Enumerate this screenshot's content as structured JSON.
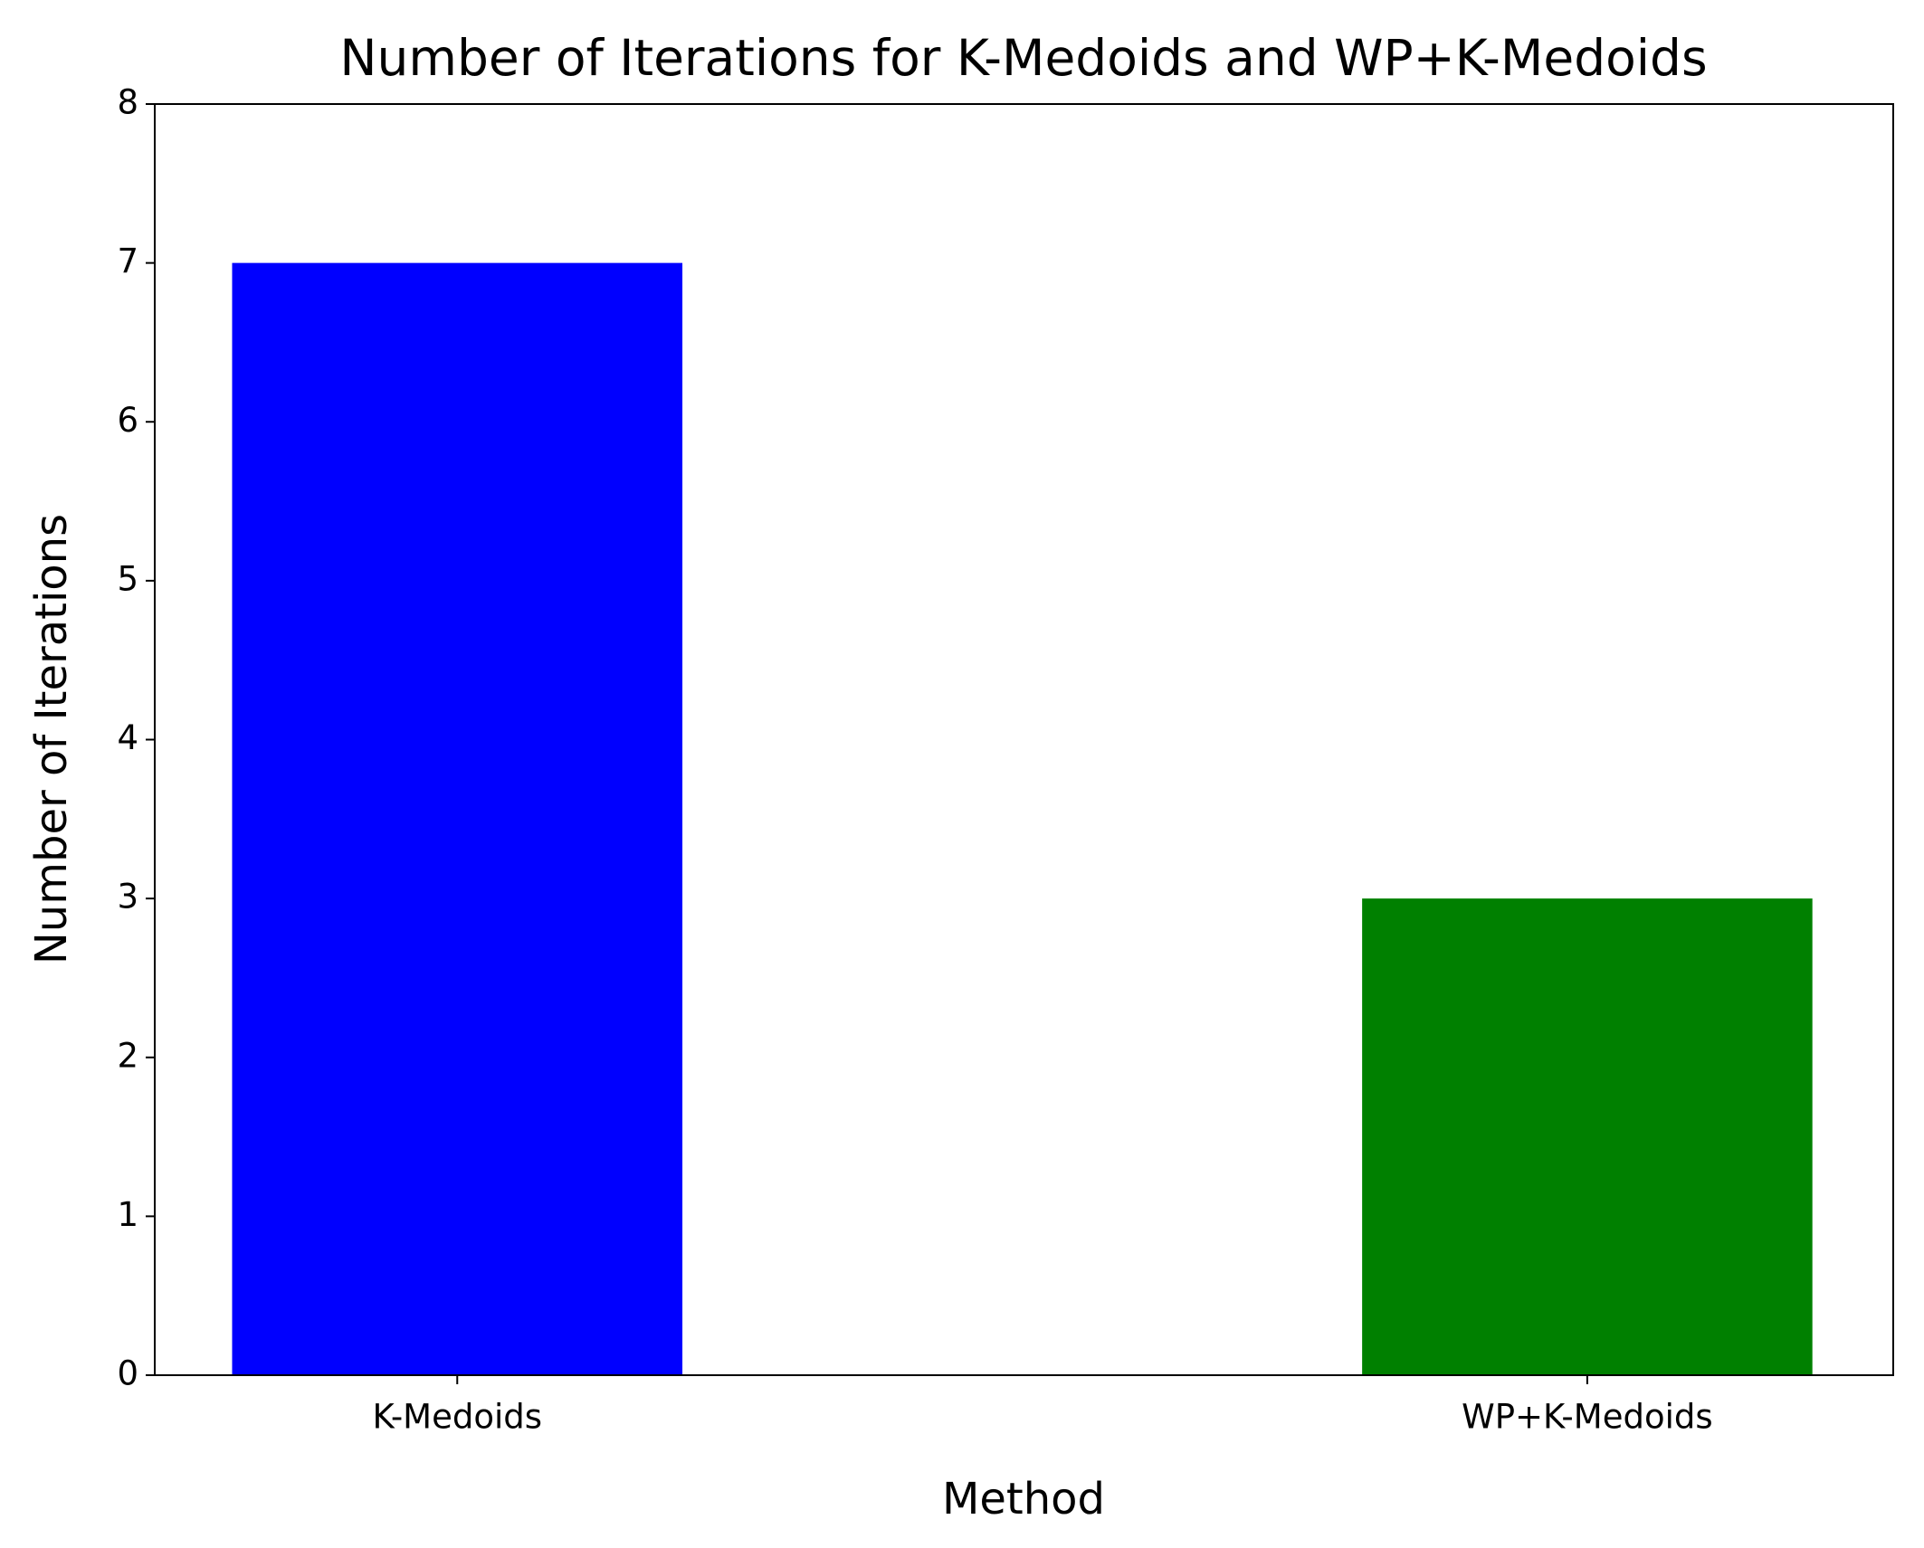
{
  "chart_data": {
    "type": "bar",
    "title": "Number of Iterations for K-Medoids and WP+K-Medoids",
    "x_label": "Method",
    "y_label": "Number of Iterations",
    "categories": [
      "K-Medoids",
      "WP+K-Medoids"
    ],
    "values": [
      7,
      3
    ],
    "colors": [
      "#0000ff",
      "#008000"
    ],
    "ylim": [
      0,
      8
    ],
    "yticks": [
      0,
      1,
      2,
      3,
      4,
      5,
      6,
      7,
      8
    ]
  }
}
